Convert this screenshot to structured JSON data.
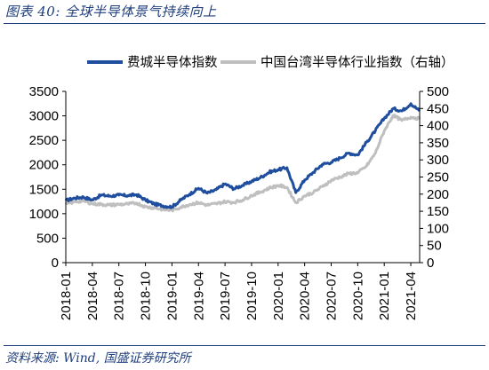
{
  "figure_title": "图表 40:  全球半导体景气持续向上",
  "source": "资料来源:  Wind, 国盛证券研究所",
  "colors": {
    "sox": "#1f4e9e",
    "taiwan": "#bfbfbf",
    "frame": "#1f3e7c"
  },
  "chart_data": {
    "type": "line",
    "title": "",
    "x_ticks": [
      "2018-01",
      "2018-04",
      "2018-07",
      "2018-10",
      "2019-01",
      "2019-04",
      "2019-07",
      "2019-10",
      "2020-01",
      "2020-04",
      "2020-07",
      "2020-10",
      "2021-01",
      "2021-04"
    ],
    "x_range": [
      "2018-01",
      "2021-05"
    ],
    "y_left": {
      "range": [
        0,
        3500
      ],
      "ticks": [
        0,
        500,
        1000,
        1500,
        2000,
        2500,
        3000,
        3500
      ]
    },
    "y_right": {
      "range": [
        0,
        500
      ],
      "ticks": [
        0,
        50,
        100,
        150,
        200,
        250,
        300,
        350,
        400,
        450,
        500
      ]
    },
    "legend_position": "top",
    "grid": false,
    "series": [
      {
        "name": "费城半导体指数",
        "axis": "left",
        "color": "#1f4e9e",
        "points": [
          [
            "2018-01",
            1270
          ],
          [
            "2018-02",
            1320
          ],
          [
            "2018-03",
            1340
          ],
          [
            "2018-04",
            1280
          ],
          [
            "2018-05",
            1380
          ],
          [
            "2018-06",
            1360
          ],
          [
            "2018-07",
            1380
          ],
          [
            "2018-08",
            1370
          ],
          [
            "2018-09",
            1390
          ],
          [
            "2018-10",
            1280
          ],
          [
            "2018-11",
            1200
          ],
          [
            "2018-12",
            1160
          ],
          [
            "2019-01",
            1140
          ],
          [
            "2019-02",
            1280
          ],
          [
            "2019-03",
            1400
          ],
          [
            "2019-04",
            1520
          ],
          [
            "2019-05",
            1420
          ],
          [
            "2019-06",
            1490
          ],
          [
            "2019-07",
            1610
          ],
          [
            "2019-08",
            1510
          ],
          [
            "2019-09",
            1580
          ],
          [
            "2019-10",
            1660
          ],
          [
            "2019-11",
            1740
          ],
          [
            "2019-12",
            1850
          ],
          [
            "2020-01",
            1900
          ],
          [
            "2020-02",
            1940
          ],
          [
            "2020-03",
            1430
          ],
          [
            "2020-04",
            1690
          ],
          [
            "2020-05",
            1850
          ],
          [
            "2020-06",
            2010
          ],
          [
            "2020-07",
            2050
          ],
          [
            "2020-08",
            2140
          ],
          [
            "2020-09",
            2240
          ],
          [
            "2020-10",
            2200
          ],
          [
            "2020-11",
            2460
          ],
          [
            "2020-12",
            2700
          ],
          [
            "2021-01",
            2950
          ],
          [
            "2021-02",
            3150
          ],
          [
            "2021-03",
            3100
          ],
          [
            "2021-04",
            3250
          ],
          [
            "2021-05",
            3100
          ]
        ]
      },
      {
        "name": "中国台湾半导体行业指数（右轴）",
        "axis": "right",
        "color": "#bfbfbf",
        "points": [
          [
            "2018-01",
            170
          ],
          [
            "2018-02",
            178
          ],
          [
            "2018-03",
            180
          ],
          [
            "2018-04",
            172
          ],
          [
            "2018-05",
            170
          ],
          [
            "2018-06",
            168
          ],
          [
            "2018-07",
            170
          ],
          [
            "2018-08",
            171
          ],
          [
            "2018-09",
            174
          ],
          [
            "2018-10",
            163
          ],
          [
            "2018-11",
            160
          ],
          [
            "2018-12",
            155
          ],
          [
            "2019-01",
            153
          ],
          [
            "2019-02",
            162
          ],
          [
            "2019-03",
            170
          ],
          [
            "2019-04",
            175
          ],
          [
            "2019-05",
            168
          ],
          [
            "2019-06",
            172
          ],
          [
            "2019-07",
            178
          ],
          [
            "2019-08",
            176
          ],
          [
            "2019-09",
            183
          ],
          [
            "2019-10",
            196
          ],
          [
            "2019-11",
            206
          ],
          [
            "2019-12",
            218
          ],
          [
            "2020-01",
            225
          ],
          [
            "2020-02",
            220
          ],
          [
            "2020-03",
            175
          ],
          [
            "2020-04",
            195
          ],
          [
            "2020-05",
            205
          ],
          [
            "2020-06",
            222
          ],
          [
            "2020-07",
            240
          ],
          [
            "2020-08",
            250
          ],
          [
            "2020-09",
            260
          ],
          [
            "2020-10",
            262
          ],
          [
            "2020-11",
            282
          ],
          [
            "2020-12",
            320
          ],
          [
            "2021-01",
            385
          ],
          [
            "2021-02",
            430
          ],
          [
            "2021-03",
            415
          ],
          [
            "2021-04",
            425
          ],
          [
            "2021-05",
            420
          ]
        ]
      }
    ]
  }
}
